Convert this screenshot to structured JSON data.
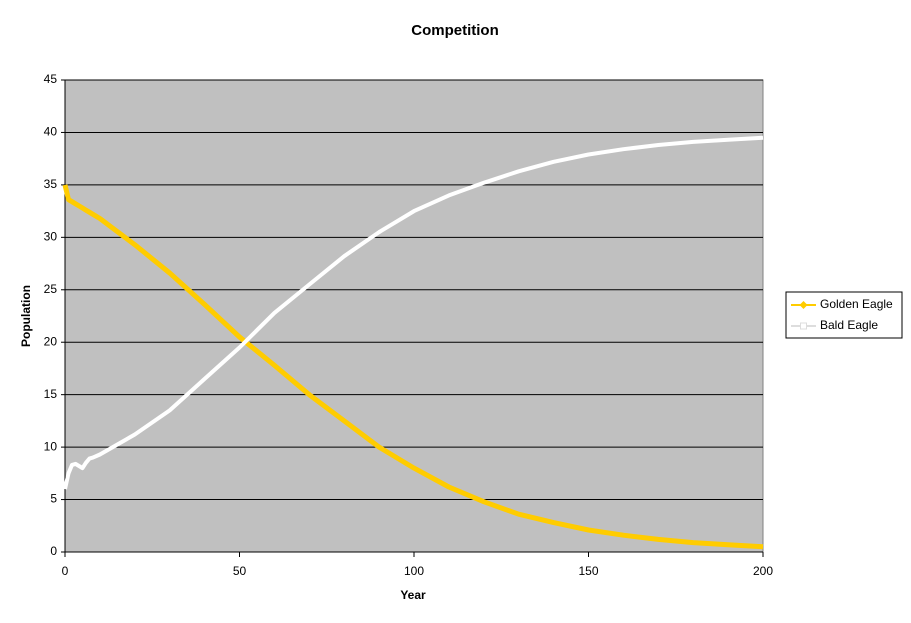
{
  "chart_data": {
    "type": "line",
    "title": "Competition",
    "x_label": "Year",
    "y_label": "Population",
    "x": [
      0,
      1,
      2,
      3,
      4,
      5,
      6,
      7,
      8,
      10,
      20,
      30,
      40,
      50,
      60,
      70,
      80,
      90,
      100,
      110,
      120,
      130,
      140,
      150,
      160,
      170,
      180,
      190,
      200
    ],
    "series": [
      {
        "name": "Golden Eagle",
        "color": "#ffcc00",
        "values": [
          35,
          33.6,
          33.4,
          33.2,
          33.0,
          32.8,
          32.6,
          32.4,
          32.2,
          31.8,
          29.3,
          26.6,
          23.6,
          20.5,
          17.8,
          15,
          12.5,
          10,
          8,
          6.2,
          4.8,
          3.6,
          2.8,
          2.1,
          1.6,
          1.2,
          0.9,
          0.7,
          0.5
        ]
      },
      {
        "name": "Bald Eagle",
        "color": "#ffffff",
        "values": [
          6,
          7.5,
          8.3,
          8.4,
          8.2,
          8.0,
          8.5,
          8.9,
          9.0,
          9.3,
          11.2,
          13.5,
          16.5,
          19.5,
          22.8,
          25.5,
          28.2,
          30.5,
          32.5,
          34.0,
          35.2,
          36.3,
          37.2,
          37.9,
          38.4,
          38.8,
          39.1,
          39.3,
          39.5
        ]
      }
    ],
    "xlim": [
      0,
      200
    ],
    "xticks": [
      0,
      50,
      100,
      150,
      200
    ],
    "ylim": [
      0,
      45
    ],
    "yticks": [
      0,
      5,
      10,
      15,
      20,
      25,
      30,
      35,
      40,
      45
    ],
    "grid": true,
    "legend": "right",
    "plot_background": "#c0c0c0"
  }
}
